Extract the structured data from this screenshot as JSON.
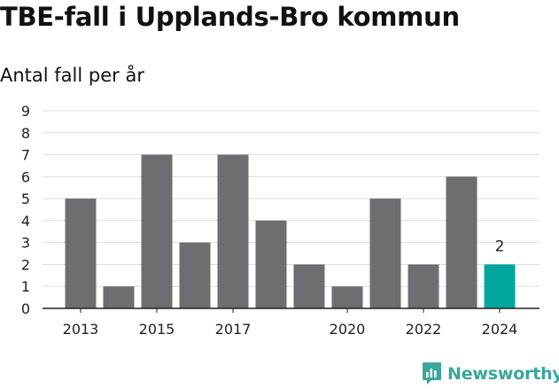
{
  "title": "TBE-fall i Upplands-Bro kommun",
  "subtitle": "Antal fall per år",
  "brand": "Newsworthy",
  "colors": {
    "bar": "#6e6d72",
    "highlight": "#00a69c",
    "grid": "#dddddd",
    "axis": "#222222"
  },
  "chart_data": {
    "type": "bar",
    "title": "TBE-fall i Upplands-Bro kommun",
    "subtitle": "Antal fall per år",
    "xlabel": "",
    "ylabel": "",
    "categories": [
      "2013",
      "2014",
      "2015",
      "2016",
      "2017",
      "2018",
      "2019",
      "2020",
      "2021",
      "2022",
      "2023",
      "2024"
    ],
    "values": [
      5,
      1,
      7,
      3,
      7,
      4,
      2,
      1,
      5,
      2,
      6,
      2
    ],
    "x_tick_labels": [
      "2013",
      "2015",
      "2017",
      "2020",
      "2022",
      "2024"
    ],
    "y_ticks": [
      0,
      1,
      2,
      3,
      4,
      5,
      6,
      7,
      8,
      9
    ],
    "ylim": [
      0,
      9
    ],
    "grid": true,
    "highlight_index": 11,
    "highlight_label": "2"
  }
}
